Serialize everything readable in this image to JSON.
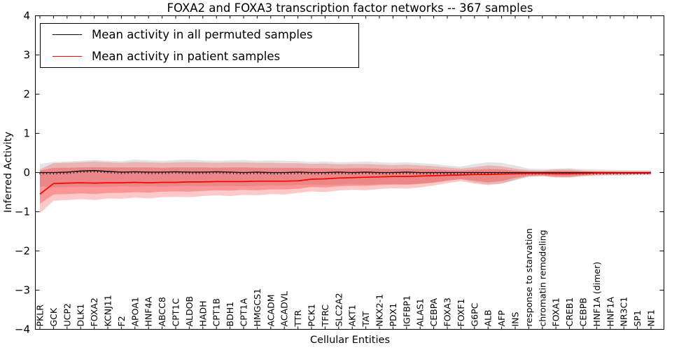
{
  "title": "FOXA2 and FOXA3 transcription factor networks -- 367 samples",
  "legend": {
    "items": [
      {
        "label": "Mean activity in all permuted samples",
        "color": "#000000"
      },
      {
        "label": "Mean activity in patient samples",
        "color": "#ff0000"
      }
    ]
  },
  "axes": {
    "ylabel": "Inferred Activity",
    "xlabel": "Cellular Entities",
    "y_tick_labels": [
      "4",
      "3",
      "2",
      "1",
      "0",
      "−1",
      "−2",
      "−3",
      "−4"
    ],
    "y_tick_values": [
      4,
      3,
      2,
      1,
      0,
      -1,
      -2,
      -3,
      -4
    ],
    "ylim": [
      -4,
      4
    ]
  },
  "colors": {
    "frame": "#000000",
    "black_line": "#000000",
    "red_line": "#ff0000",
    "gray_band": "#808080",
    "red_band_outer": "#ff3030",
    "red_band_inner": "#ee2222"
  },
  "chart_data": {
    "type": "line",
    "title": "FOXA2 and FOXA3 transcription factor networks -- 367 samples",
    "xlabel": "Cellular Entities",
    "ylabel": "Inferred Activity",
    "ylim": [
      -4,
      4
    ],
    "grid": false,
    "legend_position": "upper left",
    "categories": [
      "PKLR",
      "GCK",
      "UCP2",
      "DLK1",
      "FOXA2",
      "KCNJ11",
      "F2",
      "APOA1",
      "HNF4A",
      "ABCC8",
      "CPT1C",
      "ALDOB",
      "HADH",
      "CPT1B",
      "BDH1",
      "CPT1A",
      "HMGCS1",
      "ACADM",
      "ACADVL",
      "TTR",
      "PCK1",
      "TFRC",
      "SLC2A2",
      "AKT1",
      "TAT",
      "NKX2-1",
      "PDX1",
      "IGFBP1",
      "ALAS1",
      "CEBPA",
      "FOXA3",
      "FOXF1",
      "G6PC",
      "ALB",
      "AFP",
      "INS",
      "response to starvation",
      "chromatin remodeling",
      "FOXA1",
      "CREB1",
      "CEBPB",
      "HNF1A (dimer)",
      "HNF1A",
      "NR3C1",
      "SP1",
      "NF1"
    ],
    "series": [
      {
        "name": "Mean activity in all permuted samples",
        "color": "#000000",
        "values": [
          0.0,
          0.0,
          0.01,
          0.04,
          0.05,
          0.03,
          0.01,
          0.02,
          0.01,
          0.01,
          0.02,
          0.01,
          0.01,
          0.02,
          0.01,
          0.0,
          0.01,
          0.0,
          0.0,
          0.01,
          0.0,
          0.0,
          0.01,
          0.0,
          0.01,
          0.0,
          0.0,
          0.01,
          0.0,
          0.0,
          0.0,
          0.0,
          0.0,
          0.0,
          0.0,
          0.0,
          0.0,
          0.0,
          0.0,
          0.0,
          0.0,
          0.0,
          0.0,
          0.0,
          0.0,
          0.0
        ]
      },
      {
        "name": "Mean activity in patient samples",
        "color": "#ff0000",
        "values": [
          -0.55,
          -0.28,
          -0.27,
          -0.26,
          -0.27,
          -0.26,
          -0.26,
          -0.25,
          -0.26,
          -0.25,
          -0.25,
          -0.24,
          -0.24,
          -0.23,
          -0.23,
          -0.23,
          -0.22,
          -0.22,
          -0.22,
          -0.21,
          -0.17,
          -0.16,
          -0.14,
          -0.13,
          -0.12,
          -0.11,
          -0.1,
          -0.1,
          -0.09,
          -0.08,
          -0.07,
          -0.06,
          -0.05,
          -0.05,
          -0.04,
          -0.03,
          -0.02,
          -0.02,
          -0.03,
          -0.03,
          -0.02,
          -0.01,
          -0.01,
          -0.01,
          -0.01,
          -0.01
        ]
      }
    ],
    "bands": [
      {
        "name": "permuted-samples-range",
        "color": "#808080",
        "opacity": 0.22,
        "upper": [
          0.22,
          0.27,
          0.28,
          0.3,
          0.32,
          0.3,
          0.29,
          0.33,
          0.31,
          0.3,
          0.32,
          0.33,
          0.31,
          0.3,
          0.31,
          0.32,
          0.3,
          0.31,
          0.3,
          0.29,
          0.27,
          0.28,
          0.26,
          0.27,
          0.28,
          0.26,
          0.25,
          0.26,
          0.24,
          0.22,
          0.18,
          0.15,
          0.22,
          0.26,
          0.25,
          0.18,
          0.1,
          0.09,
          0.1,
          0.11,
          0.09,
          0.08,
          0.07,
          0.07,
          0.06,
          0.06
        ],
        "lower": [
          -0.35,
          -0.38,
          -0.37,
          -0.36,
          -0.37,
          -0.36,
          -0.35,
          -0.36,
          -0.35,
          -0.36,
          -0.35,
          -0.34,
          -0.35,
          -0.34,
          -0.34,
          -0.35,
          -0.34,
          -0.33,
          -0.33,
          -0.32,
          -0.31,
          -0.32,
          -0.31,
          -0.3,
          -0.31,
          -0.3,
          -0.29,
          -0.3,
          -0.28,
          -0.25,
          -0.2,
          -0.17,
          -0.25,
          -0.3,
          -0.28,
          -0.2,
          -0.11,
          -0.1,
          -0.11,
          -0.12,
          -0.1,
          -0.09,
          -0.08,
          -0.08,
          -0.07,
          -0.07
        ]
      },
      {
        "name": "patient-samples-range-outer",
        "color": "#ff3030",
        "opacity": 0.26,
        "upper": [
          0.08,
          0.24,
          0.25,
          0.26,
          0.28,
          0.26,
          0.25,
          0.27,
          0.26,
          0.25,
          0.26,
          0.27,
          0.26,
          0.25,
          0.26,
          0.26,
          0.25,
          0.25,
          0.24,
          0.24,
          0.22,
          0.23,
          0.21,
          0.22,
          0.22,
          0.2,
          0.19,
          0.2,
          0.18,
          0.16,
          0.13,
          0.1,
          0.14,
          0.18,
          0.16,
          0.1,
          0.06,
          0.05,
          0.08,
          0.08,
          0.05,
          0.04,
          0.04,
          0.03,
          0.03,
          0.03
        ],
        "lower": [
          -1.04,
          -0.72,
          -0.7,
          -0.68,
          -0.7,
          -0.66,
          -0.67,
          -0.64,
          -0.66,
          -0.63,
          -0.62,
          -0.63,
          -0.6,
          -0.58,
          -0.6,
          -0.57,
          -0.58,
          -0.55,
          -0.56,
          -0.52,
          -0.48,
          -0.5,
          -0.46,
          -0.44,
          -0.45,
          -0.42,
          -0.4,
          -0.41,
          -0.38,
          -0.33,
          -0.27,
          -0.22,
          -0.28,
          -0.32,
          -0.28,
          -0.18,
          -0.1,
          -0.09,
          -0.13,
          -0.13,
          -0.09,
          -0.07,
          -0.06,
          -0.06,
          -0.05,
          -0.05
        ]
      },
      {
        "name": "patient-samples-range-inner",
        "color": "#ee2222",
        "opacity": 0.3,
        "upper": [
          0.05,
          0.12,
          0.12,
          0.13,
          0.14,
          0.13,
          0.13,
          0.13,
          0.13,
          0.12,
          0.13,
          0.13,
          0.13,
          0.12,
          0.13,
          0.13,
          0.12,
          0.12,
          0.12,
          0.12,
          0.11,
          0.11,
          0.1,
          0.11,
          0.11,
          0.1,
          0.09,
          0.1,
          0.09,
          0.08,
          0.06,
          0.05,
          0.07,
          0.09,
          0.08,
          0.05,
          0.03,
          0.03,
          0.04,
          0.04,
          0.03,
          0.02,
          0.02,
          0.02,
          0.02,
          0.02
        ],
        "lower": [
          -0.8,
          -0.56,
          -0.55,
          -0.53,
          -0.55,
          -0.52,
          -0.52,
          -0.5,
          -0.51,
          -0.49,
          -0.48,
          -0.49,
          -0.47,
          -0.45,
          -0.46,
          -0.44,
          -0.45,
          -0.43,
          -0.43,
          -0.41,
          -0.37,
          -0.38,
          -0.35,
          -0.34,
          -0.34,
          -0.32,
          -0.31,
          -0.31,
          -0.29,
          -0.26,
          -0.21,
          -0.17,
          -0.21,
          -0.25,
          -0.22,
          -0.14,
          -0.08,
          -0.07,
          -0.1,
          -0.1,
          -0.07,
          -0.05,
          -0.05,
          -0.04,
          -0.04,
          -0.04
        ]
      }
    ]
  }
}
